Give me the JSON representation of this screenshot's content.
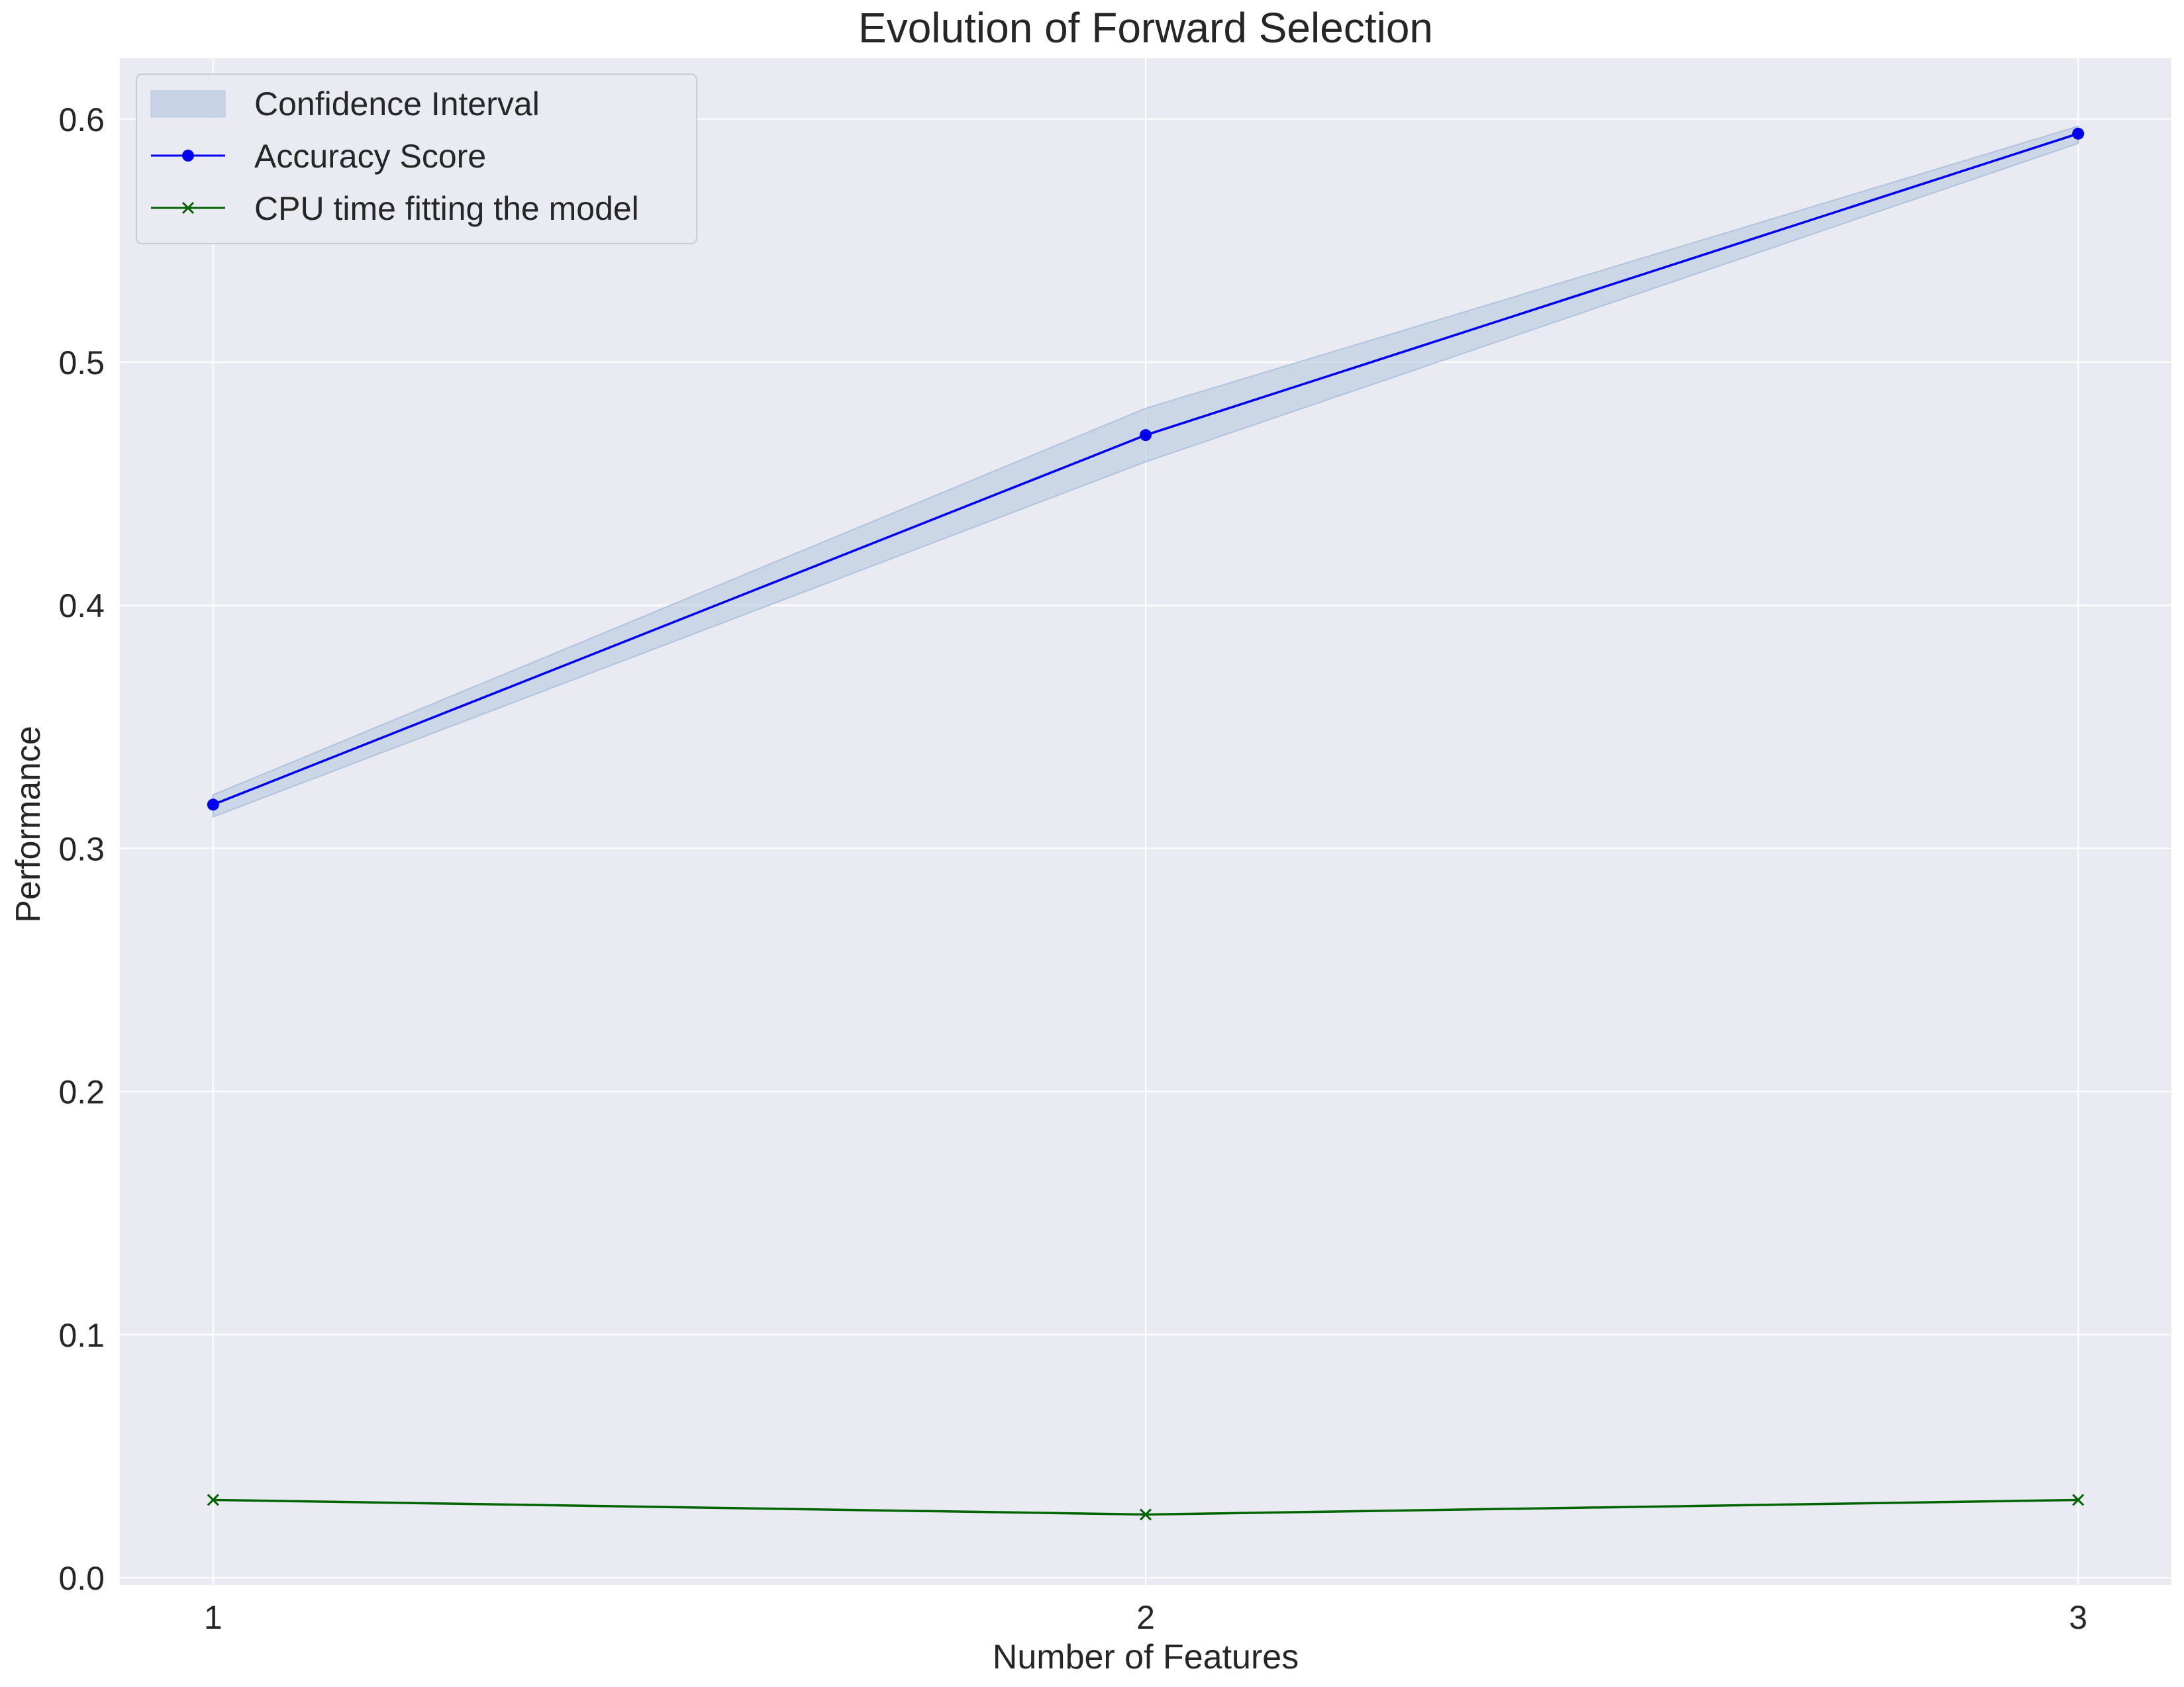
{
  "chart_data": {
    "type": "line",
    "title": "Evolution of Forward Selection",
    "xlabel": "Number of Features",
    "ylabel": "Performance",
    "x": [
      1,
      2,
      3
    ],
    "xlim": [
      0.9,
      3.1
    ],
    "ylim": [
      -0.003,
      0.625
    ],
    "yticks": [
      0.0,
      0.1,
      0.2,
      0.3,
      0.4,
      0.5,
      0.6
    ],
    "ytick_labels": [
      "0.0",
      "0.1",
      "0.2",
      "0.3",
      "0.4",
      "0.5",
      "0.6"
    ],
    "xticks": [
      1,
      2,
      3
    ],
    "xtick_labels": [
      "1",
      "2",
      "3"
    ],
    "grid": true,
    "legend_position": "top-left",
    "band": {
      "name": "Confidence Interval",
      "lower": [
        0.313,
        0.459,
        0.59
      ],
      "upper": [
        0.322,
        0.481,
        0.597
      ],
      "color": "#b0c4de"
    },
    "series": [
      {
        "name": "Accuracy Score",
        "values": [
          0.318,
          0.47,
          0.594
        ],
        "color": "#0000ee",
        "marker": "circle"
      },
      {
        "name": "CPU time fitting the model",
        "values": [
          0.032,
          0.026,
          0.032
        ],
        "color": "#006400",
        "marker": "x"
      }
    ],
    "colors": {
      "plot_background": "#eaeaf2",
      "grid": "#ffffff"
    }
  }
}
